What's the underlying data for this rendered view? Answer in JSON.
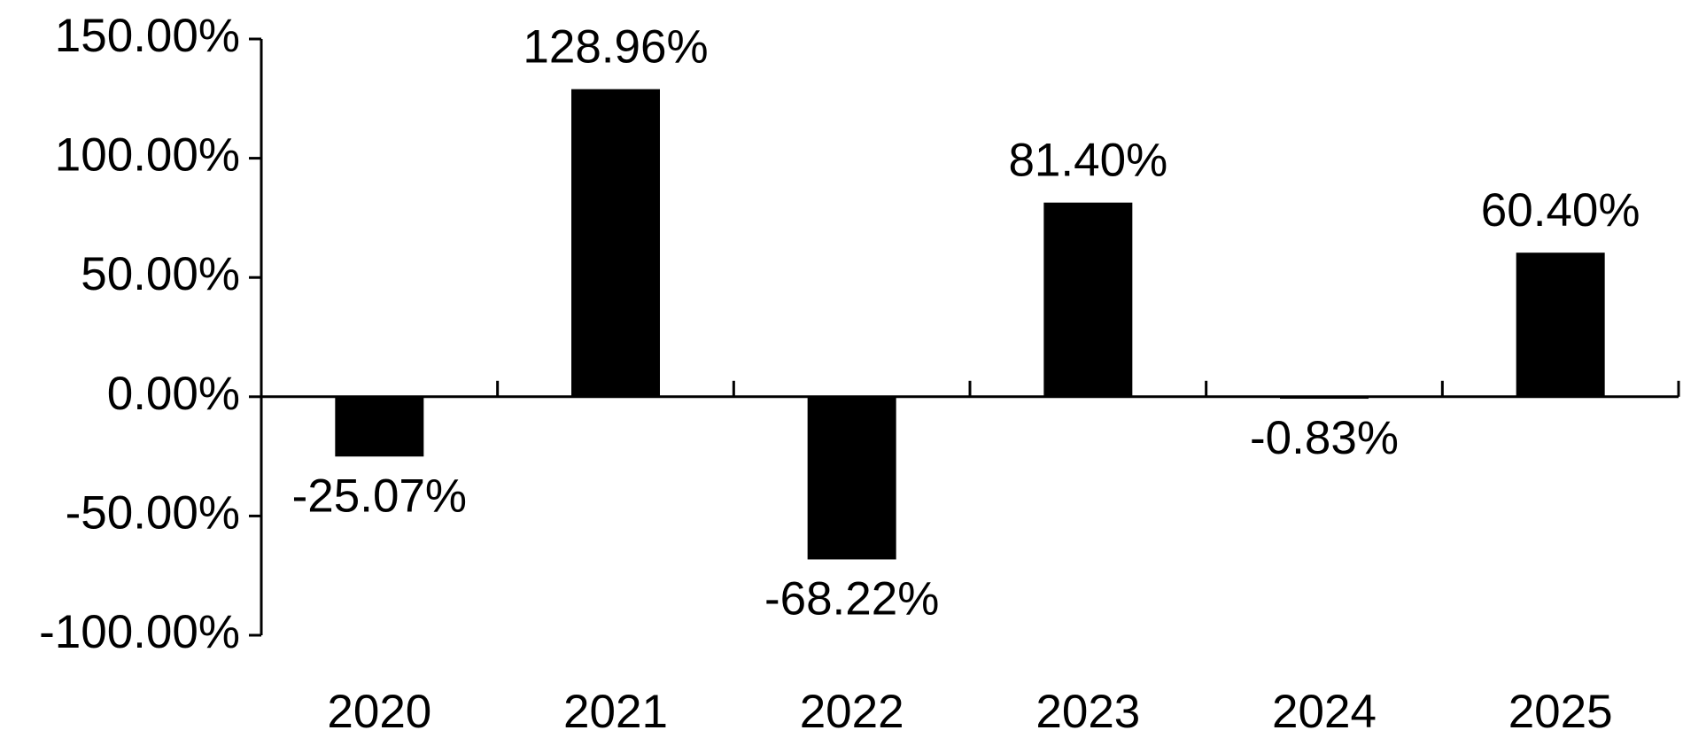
{
  "chart_data": {
    "type": "bar",
    "categories": [
      "2020",
      "2021",
      "2022",
      "2023",
      "2024",
      "2025"
    ],
    "values": [
      -25.07,
      128.96,
      -68.22,
      81.4,
      -0.83,
      60.4
    ],
    "value_labels": [
      "-25.07%",
      "128.96%",
      "-68.22%",
      "81.40%",
      "-0.83%",
      "60.40%"
    ],
    "color": "#000000",
    "ylim": [
      -100,
      150
    ],
    "yticks": [
      {
        "value": -100,
        "label": "-100.00%"
      },
      {
        "value": -50,
        "label": "-50.00%"
      },
      {
        "value": 0,
        "label": "0.00%"
      },
      {
        "value": 50,
        "label": "50.00%"
      },
      {
        "value": 100,
        "label": "100.00%"
      },
      {
        "value": 150,
        "label": "150.00%"
      }
    ],
    "grid": false
  }
}
